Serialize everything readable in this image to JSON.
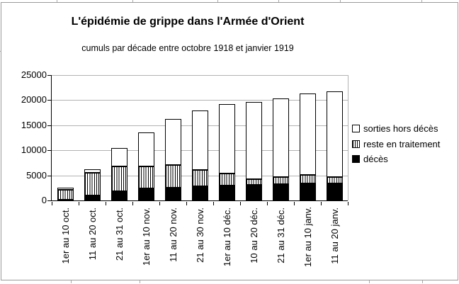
{
  "chart_data": {
    "type": "bar",
    "stacked": true,
    "title": "L'épidémie de grippe dans l'Armée d'Orient",
    "subtitle": "cumuls par décade entre octobre 1918 et janvier 1919",
    "categories": [
      "1er au 10 oct.",
      "11 au 20 oct.",
      "21 au 31 oct.",
      "1er au 10 nov.",
      "11 au 20 nov.",
      "21 au 30 nov.",
      "1er au 10 déc.",
      "10 au 20 déc.",
      "21 au 31 déc.",
      "1er au 10 janv.",
      "11 au 20 janv."
    ],
    "series": [
      {
        "name": "décès",
        "style": "solid-black",
        "values": [
          200,
          1000,
          1900,
          2400,
          2550,
          2850,
          3000,
          3100,
          3200,
          3350,
          3350
        ]
      },
      {
        "name": "reste en traitement",
        "style": "vertical-hatch",
        "values": [
          1950,
          4550,
          4900,
          4400,
          4500,
          3250,
          2300,
          1100,
          1450,
          1750,
          1300
        ]
      },
      {
        "name": "sorties hors décès",
        "style": "white",
        "values": [
          450,
          650,
          3600,
          6700,
          9150,
          11800,
          13900,
          15400,
          15750,
          16200,
          17050
        ]
      }
    ],
    "totals": [
      2600,
      6200,
      10400,
      13500,
      16200,
      17900,
      19200,
      19600,
      20400,
      21300,
      21700
    ],
    "y_axis": {
      "min": 0,
      "max": 25000,
      "tick_interval": 5000,
      "tick_labels": [
        "0",
        "5000",
        "10000",
        "15000",
        "20000",
        "25000"
      ]
    },
    "legend": {
      "position": "right",
      "order_top_to_bottom": [
        "sorties hors décès",
        "reste en traitement",
        "décès"
      ]
    },
    "grid": "horizontal",
    "colors": {
      "axis": "#000000",
      "gridline": "#b2b2b2",
      "bar_fill_deces": "#000000",
      "bar_fill_sorties": "#ffffff",
      "bar_border": "#000000",
      "chart_frame": "#9a9a9a",
      "background": "#ffffff"
    }
  }
}
